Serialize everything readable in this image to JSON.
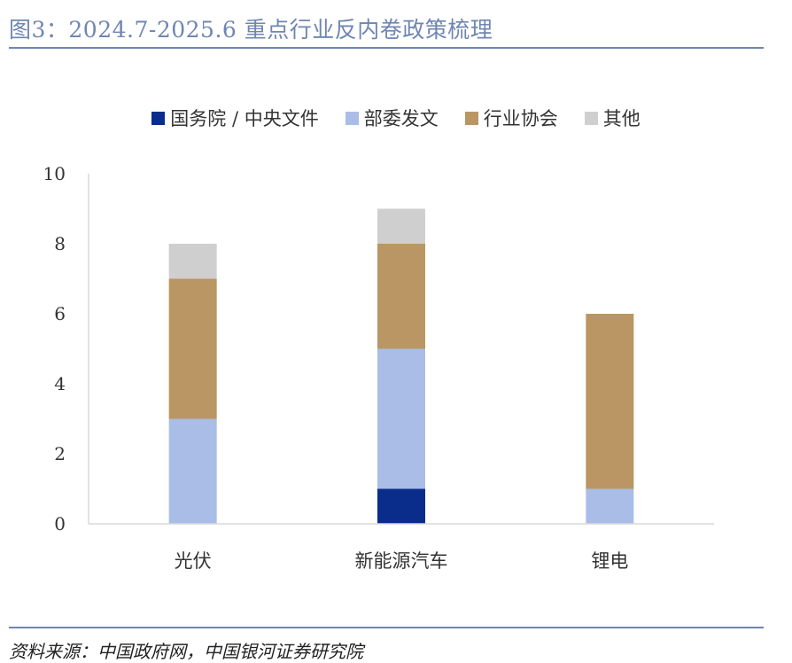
{
  "figure": {
    "title": "图3：2024.7-2025.6 重点行业反内卷政策梳理",
    "source": "资料来源：中国政府网，中国银河证券研究院"
  },
  "chart_data": {
    "type": "bar",
    "stacked": true,
    "categories": [
      "光伏",
      "新能源汽车",
      "锂电"
    ],
    "series": [
      {
        "name": "国务院 / 中央文件",
        "color": "#0a2d8c",
        "values": [
          0,
          1,
          0
        ]
      },
      {
        "name": "部委发文",
        "color": "#a9bde6",
        "values": [
          3,
          4,
          1
        ]
      },
      {
        "name": "行业协会",
        "color": "#b99663",
        "values": [
          4,
          3,
          5
        ]
      },
      {
        "name": "其他",
        "color": "#d0cfcf",
        "values": [
          1,
          1,
          0
        ]
      }
    ],
    "ylim": [
      0,
      10
    ],
    "yticks": [
      "0",
      "2",
      "4",
      "6",
      "8",
      "10"
    ],
    "grid": false,
    "legend": "top-center"
  }
}
